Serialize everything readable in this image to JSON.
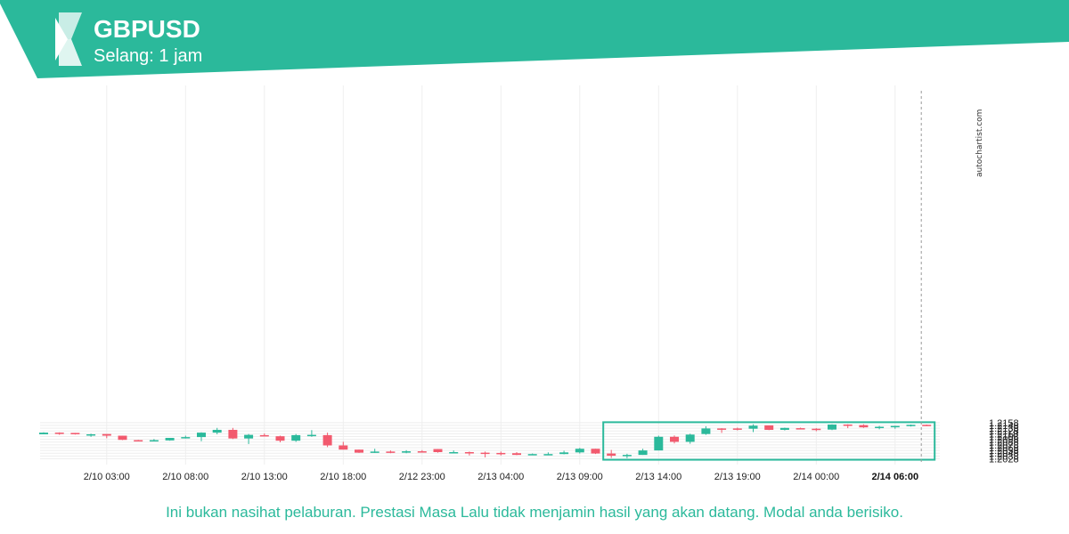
{
  "header": {
    "symbol": "GBPUSD",
    "interval": "Selang: 1 jam",
    "brand_color": "#2bb99b"
  },
  "watermark": "autochartist.com",
  "disclaimer": "Ini bukan nasihat pelaburan. Prestasi Masa Lalu tidak menjamin hasil yang akan datang. Modal anda berisiko.",
  "chart_data": {
    "type": "candlestick",
    "title": "GBPUSD",
    "interval": "Selang: 1 jam",
    "up_color": "#2bb99b",
    "down_color": "#f25a6e",
    "y_ticks": [
      "1.2028",
      "1.2038",
      "1.2048",
      "1.2058",
      "1.2068",
      "1.2078",
      "1.2088",
      "1.2098",
      "1.2108",
      "1.2118",
      "1.2128",
      "1.2138",
      "1.2148",
      "1.2158"
    ],
    "ylim": [
      1.2024,
      1.2162
    ],
    "x_ticks": [
      {
        "index": 4,
        "label": "2/10 03:00"
      },
      {
        "index": 9,
        "label": "2/10 08:00"
      },
      {
        "index": 14,
        "label": "2/10 13:00"
      },
      {
        "index": 19,
        "label": "2/10 18:00"
      },
      {
        "index": 24,
        "label": "2/12 23:00"
      },
      {
        "index": 29,
        "label": "2/13 04:00"
      },
      {
        "index": 34,
        "label": "2/13 09:00"
      },
      {
        "index": 39,
        "label": "2/13 14:00"
      },
      {
        "index": 44,
        "label": "2/13 19:00"
      },
      {
        "index": 49,
        "label": "2/14 00:00"
      },
      {
        "index": 54,
        "label": "2/14 06:00",
        "bold": true
      }
    ],
    "candles": [
      {
        "o": 1.2116,
        "h": 1.2123,
        "l": 1.2116,
        "c": 1.2122
      },
      {
        "o": 1.2122,
        "h": 1.2123,
        "l": 1.2114,
        "c": 1.212
      },
      {
        "o": 1.2121,
        "h": 1.2121,
        "l": 1.2115,
        "c": 1.2116
      },
      {
        "o": 1.2116,
        "h": 1.2118,
        "l": 1.2107,
        "c": 1.2116
      },
      {
        "o": 1.2117,
        "h": 1.2117,
        "l": 1.2102,
        "c": 1.2111
      },
      {
        "o": 1.2111,
        "h": 1.2111,
        "l": 1.2095,
        "c": 1.2096
      },
      {
        "o": 1.2095,
        "h": 1.2096,
        "l": 1.2091,
        "c": 1.2093
      },
      {
        "o": 1.2093,
        "h": 1.2099,
        "l": 1.2091,
        "c": 1.2095
      },
      {
        "o": 1.2094,
        "h": 1.2103,
        "l": 1.2093,
        "c": 1.2103
      },
      {
        "o": 1.2102,
        "h": 1.2111,
        "l": 1.2101,
        "c": 1.2106
      },
      {
        "o": 1.2106,
        "h": 1.2123,
        "l": 1.2091,
        "c": 1.2122
      },
      {
        "o": 1.2122,
        "h": 1.2139,
        "l": 1.2116,
        "c": 1.2132
      },
      {
        "o": 1.2132,
        "h": 1.2139,
        "l": 1.2099,
        "c": 1.2101
      },
      {
        "o": 1.2101,
        "h": 1.2117,
        "l": 1.2081,
        "c": 1.2114
      },
      {
        "o": 1.2113,
        "h": 1.2119,
        "l": 1.2108,
        "c": 1.2109
      },
      {
        "o": 1.2109,
        "h": 1.2111,
        "l": 1.2087,
        "c": 1.2093
      },
      {
        "o": 1.2093,
        "h": 1.2117,
        "l": 1.2089,
        "c": 1.2113
      },
      {
        "o": 1.2113,
        "h": 1.2131,
        "l": 1.2107,
        "c": 1.2114
      },
      {
        "o": 1.2113,
        "h": 1.2122,
        "l": 1.207,
        "c": 1.2076
      },
      {
        "o": 1.2076,
        "h": 1.2089,
        "l": 1.2061,
        "c": 1.2061
      },
      {
        "o": 1.2061,
        "h": 1.2061,
        "l": 1.2049,
        "c": 1.205
      },
      {
        "o": 1.205,
        "h": 1.2064,
        "l": 1.2049,
        "c": 1.2054
      },
      {
        "o": 1.2054,
        "h": 1.2058,
        "l": 1.2048,
        "c": 1.205
      },
      {
        "o": 1.205,
        "h": 1.2059,
        "l": 1.2048,
        "c": 1.2055
      },
      {
        "o": 1.2055,
        "h": 1.2059,
        "l": 1.2052,
        "c": 1.2054
      },
      {
        "o": 1.2063,
        "h": 1.2063,
        "l": 1.205,
        "c": 1.2052
      },
      {
        "o": 1.2052,
        "h": 1.2058,
        "l": 1.2052,
        "c": 1.2052
      },
      {
        "o": 1.2052,
        "h": 1.2054,
        "l": 1.204,
        "c": 1.205
      },
      {
        "o": 1.205,
        "h": 1.2054,
        "l": 1.2033,
        "c": 1.2049
      },
      {
        "o": 1.2049,
        "h": 1.2054,
        "l": 1.204,
        "c": 1.2048
      },
      {
        "o": 1.2048,
        "h": 1.2052,
        "l": 1.2041,
        "c": 1.2042
      },
      {
        "o": 1.2042,
        "h": 1.2047,
        "l": 1.2041,
        "c": 1.2045
      },
      {
        "o": 1.2044,
        "h": 1.2051,
        "l": 1.2042,
        "c": 1.2045
      },
      {
        "o": 1.2045,
        "h": 1.2057,
        "l": 1.2044,
        "c": 1.2051
      },
      {
        "o": 1.2051,
        "h": 1.2067,
        "l": 1.2047,
        "c": 1.2064
      },
      {
        "o": 1.2064,
        "h": 1.2064,
        "l": 1.2045,
        "c": 1.2047
      },
      {
        "o": 1.2047,
        "h": 1.206,
        "l": 1.2031,
        "c": 1.2039
      },
      {
        "o": 1.2039,
        "h": 1.2046,
        "l": 1.203,
        "c": 1.2042
      },
      {
        "o": 1.2042,
        "h": 1.2064,
        "l": 1.2042,
        "c": 1.2058
      },
      {
        "o": 1.2058,
        "h": 1.2111,
        "l": 1.2058,
        "c": 1.2107
      },
      {
        "o": 1.2107,
        "h": 1.2112,
        "l": 1.2083,
        "c": 1.2089
      },
      {
        "o": 1.2089,
        "h": 1.2118,
        "l": 1.2082,
        "c": 1.2115
      },
      {
        "o": 1.2117,
        "h": 1.2145,
        "l": 1.2114,
        "c": 1.2137
      },
      {
        "o": 1.2137,
        "h": 1.2138,
        "l": 1.2121,
        "c": 1.2136
      },
      {
        "o": 1.2137,
        "h": 1.214,
        "l": 1.213,
        "c": 1.2136
      },
      {
        "o": 1.2136,
        "h": 1.2152,
        "l": 1.2124,
        "c": 1.2147
      },
      {
        "o": 1.2148,
        "h": 1.2148,
        "l": 1.2131,
        "c": 1.2132
      },
      {
        "o": 1.2132,
        "h": 1.214,
        "l": 1.213,
        "c": 1.2139
      },
      {
        "o": 1.2138,
        "h": 1.214,
        "l": 1.2135,
        "c": 1.2136
      },
      {
        "o": 1.2136,
        "h": 1.2138,
        "l": 1.2127,
        "c": 1.2133
      },
      {
        "o": 1.2133,
        "h": 1.2152,
        "l": 1.2131,
        "c": 1.2151
      },
      {
        "o": 1.2151,
        "h": 1.2152,
        "l": 1.2138,
        "c": 1.2149
      },
      {
        "o": 1.2149,
        "h": 1.2152,
        "l": 1.2139,
        "c": 1.2141
      },
      {
        "o": 1.2141,
        "h": 1.2146,
        "l": 1.2134,
        "c": 1.2143
      },
      {
        "o": 1.2143,
        "h": 1.2147,
        "l": 1.2136,
        "c": 1.2146
      },
      {
        "o": 1.2146,
        "h": 1.2151,
        "l": 1.2144,
        "c": 1.215
      },
      {
        "o": 1.215,
        "h": 1.2151,
        "l": 1.2146,
        "c": 1.2147
      }
    ],
    "highlight": {
      "from_index": 36,
      "to_index": 56,
      "y_high": 1.2153,
      "y_low": 1.2031,
      "color": "#2bb99b"
    },
    "current_marker_index": 56
  }
}
